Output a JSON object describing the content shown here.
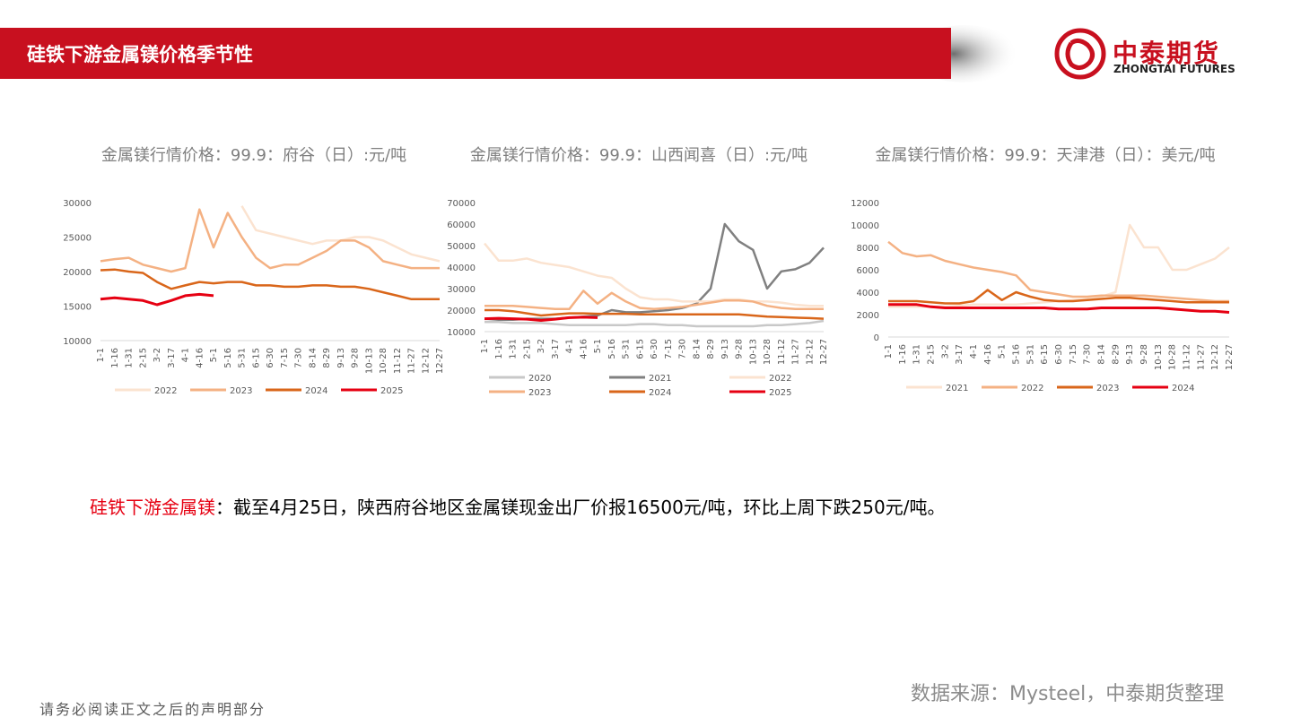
{
  "header": {
    "title": "硅铁下游金属镁价格季节性",
    "logo_cn": "中泰期货",
    "logo_en": "ZHONGTAI FUTURES"
  },
  "chart_data": [
    {
      "type": "line",
      "title": "金属镁行情价格：99.9：府谷（日）:元/吨",
      "categories": [
        "1-1",
        "1-16",
        "1-31",
        "2-15",
        "3-2",
        "3-17",
        "4-1",
        "4-16",
        "5-1",
        "5-16",
        "5-31",
        "6-15",
        "6-30",
        "7-15",
        "7-30",
        "8-14",
        "8-29",
        "9-13",
        "9-28",
        "10-13",
        "10-28",
        "11-12",
        "11-27",
        "12-12",
        "12-27"
      ],
      "ylim": [
        10000,
        30000
      ],
      "yticks": [
        10000,
        15000,
        20000,
        25000,
        30000
      ],
      "series": [
        {
          "name": "2022",
          "color": "#fbe3d0",
          "values": [
            null,
            null,
            null,
            null,
            null,
            null,
            null,
            null,
            null,
            null,
            29500,
            26000,
            25500,
            25000,
            24500,
            24000,
            24500,
            24500,
            25000,
            25000,
            24500,
            23500,
            22500,
            22000,
            21500
          ]
        },
        {
          "name": "2023",
          "color": "#f4b183",
          "values": [
            21500,
            21800,
            22000,
            21000,
            20500,
            20000,
            20500,
            29000,
            23500,
            28500,
            25000,
            22000,
            20500,
            21000,
            21000,
            22000,
            23000,
            24500,
            24500,
            23500,
            21500,
            21000,
            20500,
            20500,
            20500
          ]
        },
        {
          "name": "2024",
          "color": "#d9661a",
          "values": [
            20200,
            20300,
            20000,
            19800,
            18500,
            17500,
            18000,
            18500,
            18300,
            18500,
            18500,
            18000,
            18000,
            17800,
            17800,
            18000,
            18000,
            17800,
            17800,
            17500,
            17000,
            16500,
            16000,
            16000,
            16000
          ]
        },
        {
          "name": "2025",
          "color": "#e60012",
          "values": [
            16000,
            16200,
            16000,
            15800,
            15200,
            15800,
            16500,
            16700,
            16500,
            null,
            null,
            null,
            null,
            null,
            null,
            null,
            null,
            null,
            null,
            null,
            null,
            null,
            null,
            null,
            null
          ]
        }
      ]
    },
    {
      "type": "line",
      "title": "金属镁行情价格：99.9：山西闻喜（日）:元/吨",
      "categories": [
        "1-1",
        "1-16",
        "1-31",
        "2-15",
        "3-2",
        "3-17",
        "4-1",
        "4-16",
        "5-1",
        "5-16",
        "5-31",
        "6-15",
        "6-30",
        "7-15",
        "7-30",
        "8-14",
        "8-29",
        "9-13",
        "9-28",
        "10-13",
        "10-28",
        "11-12",
        "11-27",
        "12-12",
        "12-27"
      ],
      "ylim": [
        10000,
        70000
      ],
      "yticks": [
        10000,
        20000,
        30000,
        40000,
        50000,
        60000,
        70000
      ],
      "series": [
        {
          "name": "2020",
          "color": "#c8c8c8",
          "values": [
            14500,
            14500,
            14000,
            14000,
            14000,
            13500,
            13000,
            13000,
            13000,
            13000,
            13000,
            13500,
            13500,
            13000,
            13000,
            12500,
            12500,
            12500,
            12500,
            12500,
            13000,
            13000,
            13500,
            14000,
            15000
          ]
        },
        {
          "name": "2021",
          "color": "#808080",
          "values": [
            16000,
            15500,
            15500,
            16000,
            16000,
            16000,
            16500,
            17000,
            17500,
            20000,
            19000,
            19000,
            19500,
            20000,
            21000,
            23000,
            30000,
            60000,
            52000,
            48000,
            30000,
            38000,
            39000,
            42000,
            49000
          ]
        },
        {
          "name": "2022",
          "color": "#fbe3d0",
          "values": [
            51000,
            43000,
            43000,
            44000,
            42000,
            41000,
            40000,
            38000,
            36000,
            35000,
            30000,
            26000,
            25000,
            25000,
            24000,
            24000,
            24000,
            25000,
            25000,
            24000,
            24000,
            23500,
            22500,
            22000,
            22000
          ]
        },
        {
          "name": "2023",
          "color": "#f4b183",
          "values": [
            22000,
            22000,
            22000,
            21500,
            21000,
            20500,
            20500,
            29000,
            23000,
            28000,
            24000,
            21000,
            20500,
            21000,
            21500,
            22500,
            23500,
            24500,
            24500,
            24000,
            22000,
            21000,
            20500,
            20500,
            20500
          ]
        },
        {
          "name": "2024",
          "color": "#d9661a",
          "values": [
            20000,
            20000,
            19500,
            18500,
            17500,
            18000,
            18500,
            18500,
            18300,
            18300,
            18300,
            18000,
            18000,
            18000,
            18000,
            18000,
            18000,
            18000,
            18000,
            17500,
            17000,
            16800,
            16500,
            16300,
            16000
          ]
        },
        {
          "name": "2025",
          "color": "#e60012",
          "values": [
            16000,
            16200,
            16000,
            15800,
            15200,
            15800,
            16500,
            16700,
            16500,
            null,
            null,
            null,
            null,
            null,
            null,
            null,
            null,
            null,
            null,
            null,
            null,
            null,
            null,
            null,
            null
          ]
        }
      ]
    },
    {
      "type": "line",
      "title": "金属镁行情价格：99.9：天津港（日）：美元/吨",
      "categories": [
        "1-1",
        "1-16",
        "1-31",
        "2-15",
        "3-2",
        "3-17",
        "4-1",
        "4-16",
        "5-1",
        "5-16",
        "5-31",
        "6-15",
        "6-30",
        "7-15",
        "7-30",
        "8-14",
        "8-29",
        "9-13",
        "9-28",
        "10-13",
        "10-28",
        "11-12",
        "11-27",
        "12-12",
        "12-27"
      ],
      "ylim": [
        0,
        12000
      ],
      "yticks": [
        0,
        2000,
        4000,
        6000,
        8000,
        10000,
        12000
      ],
      "series": [
        {
          "name": "2021",
          "color": "#fbe3d0",
          "values": [
            2700,
            2700,
            2700,
            2700,
            2700,
            2800,
            2900,
            2900,
            2900,
            2900,
            3000,
            3100,
            3200,
            3300,
            3400,
            3600,
            4000,
            10000,
            8000,
            8000,
            6000,
            6000,
            6500,
            7000,
            8000
          ]
        },
        {
          "name": "2022",
          "color": "#f4b183",
          "values": [
            8500,
            7500,
            7200,
            7300,
            6800,
            6500,
            6200,
            6000,
            5800,
            5500,
            4200,
            4000,
            3800,
            3600,
            3600,
            3700,
            3700,
            3700,
            3700,
            3600,
            3500,
            3400,
            3300,
            3200,
            3200
          ]
        },
        {
          "name": "2023",
          "color": "#d9661a",
          "values": [
            3200,
            3200,
            3200,
            3100,
            3000,
            3000,
            3200,
            4200,
            3300,
            4000,
            3600,
            3300,
            3200,
            3200,
            3300,
            3400,
            3500,
            3500,
            3400,
            3300,
            3200,
            3100,
            3100,
            3100,
            3100
          ]
        },
        {
          "name": "2024",
          "color": "#e60012",
          "values": [
            2900,
            2900,
            2900,
            2700,
            2600,
            2600,
            2600,
            2600,
            2600,
            2600,
            2600,
            2600,
            2500,
            2500,
            2500,
            2600,
            2600,
            2600,
            2600,
            2600,
            2500,
            2400,
            2300,
            2300,
            2200
          ]
        }
      ]
    }
  ],
  "summary": {
    "label": "硅铁下游金属镁",
    "text": "：截至4月25日，陕西府谷地区金属镁现金出厂价报16500元/吨，环比上周下跌250元/吨。"
  },
  "source": "数据来源：Mysteel，中泰期货整理",
  "footer": "请务必阅读正文之后的声明部分"
}
